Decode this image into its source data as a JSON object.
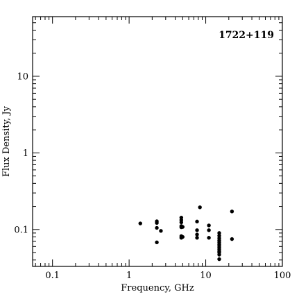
{
  "chart_data": {
    "type": "scatter",
    "title": "1722+119",
    "xlabel": "Frequency, GHz",
    "ylabel": "Flux Density, Jy",
    "x_scale": "log",
    "y_scale": "log",
    "xlim": [
      0.055,
      100
    ],
    "ylim": [
      0.033,
      60
    ],
    "x_ticks": [
      {
        "value": 0.1,
        "label": "0.1"
      },
      {
        "value": 1,
        "label": "1"
      },
      {
        "value": 10,
        "label": "10"
      },
      {
        "value": 100,
        "label": "100"
      }
    ],
    "y_ticks": [
      {
        "value": 0.1,
        "label": "0.1"
      },
      {
        "value": 1,
        "label": "1"
      },
      {
        "value": 10,
        "label": "10"
      }
    ],
    "grid": false,
    "legend": "none",
    "marker_color": "#000000",
    "series": [
      {
        "points": [
          [
            1.4,
            0.12
          ],
          [
            2.3,
            0.128
          ],
          [
            2.3,
            0.122
          ],
          [
            2.3,
            0.105
          ],
          [
            2.3,
            0.068
          ],
          [
            2.6,
            0.096
          ],
          [
            4.8,
            0.143
          ],
          [
            4.8,
            0.133
          ],
          [
            4.8,
            0.124
          ],
          [
            4.8,
            0.111
          ],
          [
            4.8,
            0.107
          ],
          [
            4.8,
            0.082
          ],
          [
            4.8,
            0.078
          ],
          [
            5.0,
            0.108
          ],
          [
            5.0,
            0.08
          ],
          [
            7.7,
            0.127
          ],
          [
            7.7,
            0.098
          ],
          [
            7.7,
            0.086
          ],
          [
            7.7,
            0.078
          ],
          [
            8.4,
            0.195
          ],
          [
            11.0,
            0.113
          ],
          [
            11.0,
            0.098
          ],
          [
            11.0,
            0.078
          ],
          [
            15.0,
            0.09
          ],
          [
            15.0,
            0.083
          ],
          [
            15.0,
            0.077
          ],
          [
            15.0,
            0.072
          ],
          [
            15.0,
            0.068
          ],
          [
            15.0,
            0.064
          ],
          [
            15.0,
            0.061
          ],
          [
            15.0,
            0.058
          ],
          [
            15.0,
            0.055
          ],
          [
            15.0,
            0.052
          ],
          [
            15.0,
            0.05
          ],
          [
            15.0,
            0.047
          ],
          [
            15.0,
            0.041
          ],
          [
            22.0,
            0.172
          ],
          [
            22.0,
            0.075
          ]
        ]
      }
    ]
  }
}
